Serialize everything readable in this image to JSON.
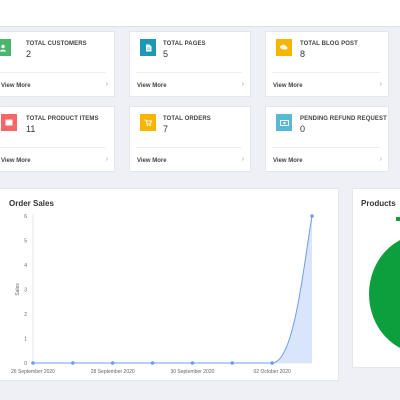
{
  "stats": [
    {
      "title": "TOTAL CUSTOMERS",
      "value": "2",
      "link": "View More",
      "color": "#48b76a",
      "icon": "user-icon"
    },
    {
      "title": "TOTAL PAGES",
      "value": "5",
      "link": "View More",
      "color": "#1a98b6",
      "icon": "document-icon"
    },
    {
      "title": "TOTAL BLOG POST",
      "value": "8",
      "link": "View More",
      "color": "#f7b500",
      "icon": "comments-icon"
    },
    {
      "title": "TOTAL PRODUCT ITEMS",
      "value": "11",
      "link": "View More",
      "color": "#f66666",
      "icon": "box-icon"
    },
    {
      "title": "TOTAL ORDERS",
      "value": "7",
      "link": "View More",
      "color": "#f7b500",
      "icon": "cart-icon"
    },
    {
      "title": "PENDING REFUND REQUEST",
      "value": "0",
      "link": "View More",
      "color": "#5bb7d6",
      "icon": "money-icon"
    }
  ],
  "order_sales": {
    "title": "Order Sales"
  },
  "products": {
    "title": "Products",
    "color": "#0d9e3e"
  },
  "chart_data": {
    "type": "line",
    "title": "",
    "xlabel": "",
    "ylabel": "Sales",
    "x": [
      "26 September 2020",
      "27 September 2020",
      "28 September 2020",
      "29 September 2020",
      "30 September 2020",
      "01 October 2020",
      "02 October 2020",
      "03 October 2020"
    ],
    "x_tick_labels": [
      "26 September 2020",
      "28 September 2020",
      "30 September 2020",
      "02 October 2020"
    ],
    "series": [
      {
        "values": [
          0,
          0,
          0,
          0,
          0,
          0,
          0,
          6
        ]
      }
    ],
    "ylim": [
      0,
      6
    ],
    "yticks": [
      0,
      1,
      2,
      3,
      4,
      5,
      6
    ],
    "color": "#6f9cf0",
    "fill": "#d9e5fb",
    "area_fill": true,
    "grid": false
  }
}
